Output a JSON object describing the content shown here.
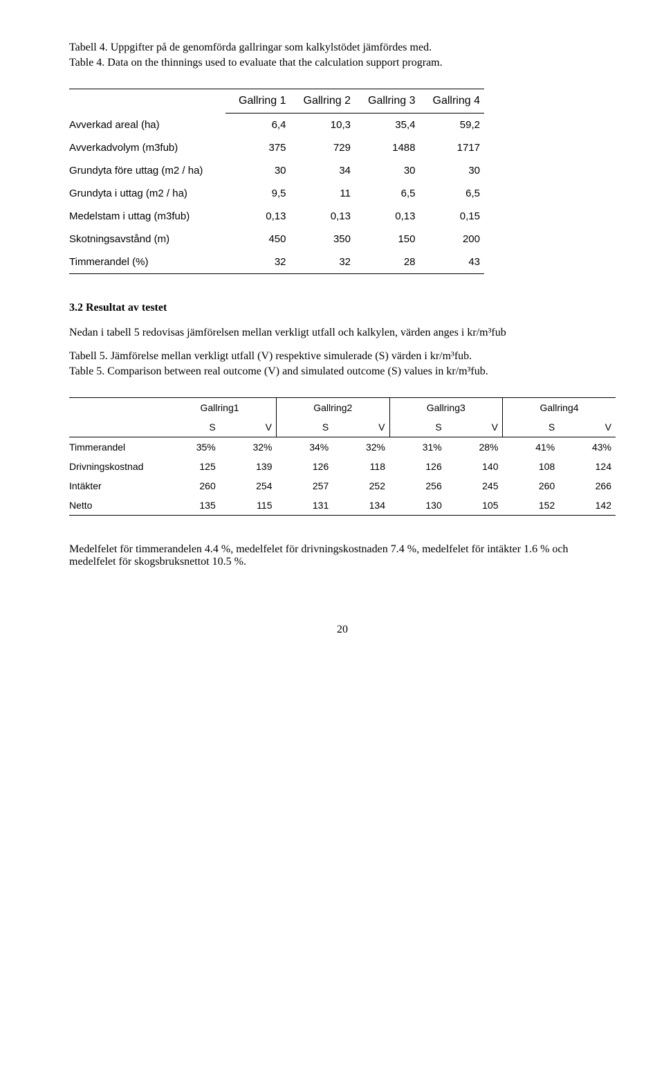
{
  "captions": {
    "t4_line1": "Tabell 4. Uppgifter på de genomförda gallringar som kalkylstödet jämfördes med.",
    "t4_line2": "Table 4. Data on the thinnings used to evaluate that the calculation support program.",
    "t5_line1": "Tabell 5. Jämförelse mellan verkligt utfall (V) respektive simulerade (S) värden i kr/m³fub.",
    "t5_line2": "Table 5. Comparison between real outcome (V) and simulated outcome (S) values in kr/m³fub."
  },
  "table4": {
    "headers": [
      "Gallring 1",
      "Gallring 2",
      "Gallring 3",
      "Gallring 4"
    ],
    "rows": [
      {
        "label": "Avverkad areal (ha)",
        "cells": [
          "6,4",
          "10,3",
          "35,4",
          "59,2"
        ]
      },
      {
        "label": "Avverkadvolym (m3fub)",
        "cells": [
          "375",
          "729",
          "1488",
          "1717"
        ]
      },
      {
        "label": "Grundyta före uttag (m2 / ha)",
        "cells": [
          "30",
          "34",
          "30",
          "30"
        ]
      },
      {
        "label": "Grundyta i uttag (m2 / ha)",
        "cells": [
          "9,5",
          "11",
          "6,5",
          "6,5"
        ]
      },
      {
        "label": "Medelstam i uttag (m3fub)",
        "cells": [
          "0,13",
          "0,13",
          "0,13",
          "0,15"
        ]
      },
      {
        "label": "Skotningsavstånd (m)",
        "cells": [
          "450",
          "350",
          "150",
          "200"
        ]
      },
      {
        "label": "Timmerandel (%)",
        "cells": [
          "32",
          "32",
          "28",
          "43"
        ]
      }
    ]
  },
  "section": {
    "heading": "3.2 Resultat av testet",
    "para1": "Nedan i tabell 5 redovisas jämförelsen mellan verkligt utfall och kalkylen, värden anges i kr/m³fub"
  },
  "table5": {
    "groups": [
      "Gallring1",
      "Gallring2",
      "Gallring3",
      "Gallring4"
    ],
    "sv": {
      "s": "S",
      "v": "V"
    },
    "rows": [
      {
        "label": "Timmerandel",
        "cells": [
          "35%",
          "32%",
          "34%",
          "32%",
          "31%",
          "28%",
          "41%",
          "43%"
        ]
      },
      {
        "label": "Drivningskostnad",
        "cells": [
          "125",
          "139",
          "126",
          "118",
          "126",
          "140",
          "108",
          "124"
        ]
      },
      {
        "label": "Intäkter",
        "cells": [
          "260",
          "254",
          "257",
          "252",
          "256",
          "245",
          "260",
          "266"
        ]
      },
      {
        "label": "Netto",
        "cells": [
          "135",
          "115",
          "131",
          "134",
          "130",
          "105",
          "152",
          "142"
        ]
      }
    ]
  },
  "closing": {
    "para": "Medelfelet för timmerandelen 4.4 %, medelfelet för drivningskostnaden 7.4 %, medelfelet för intäkter 1.6 % och medelfelet för skogsbruksnettot 10.5 %."
  },
  "page_number": "20"
}
